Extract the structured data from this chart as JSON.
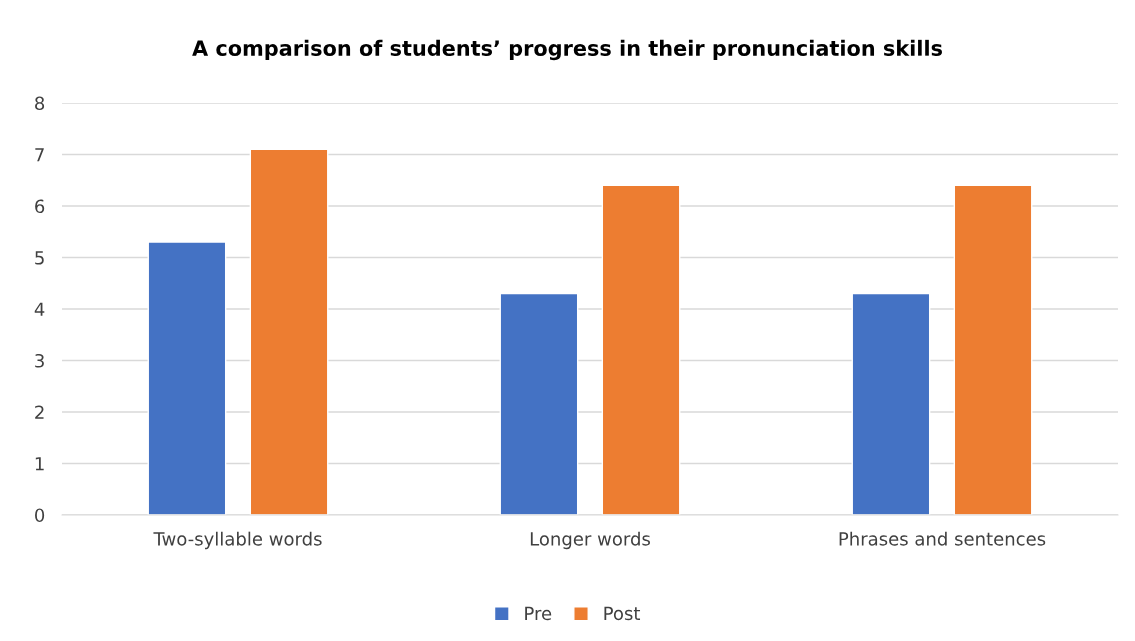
{
  "chart_data": {
    "type": "bar",
    "title": "A comparison of students’ progress in their pronunciation skills",
    "categories": [
      "Two-syllable words",
      "Longer words",
      "Phrases and sentences"
    ],
    "series": [
      {
        "name": "Pre",
        "color": "#4472c4",
        "values": [
          5.3,
          4.3,
          4.3
        ]
      },
      {
        "name": "Post",
        "color": "#ed7d31",
        "values": [
          7.1,
          6.4,
          6.4
        ]
      }
    ],
    "ylim": [
      0,
      8
    ],
    "yticks": [
      0,
      1,
      2,
      3,
      4,
      5,
      6,
      7,
      8
    ],
    "grid": "y",
    "legend": "bottom"
  }
}
